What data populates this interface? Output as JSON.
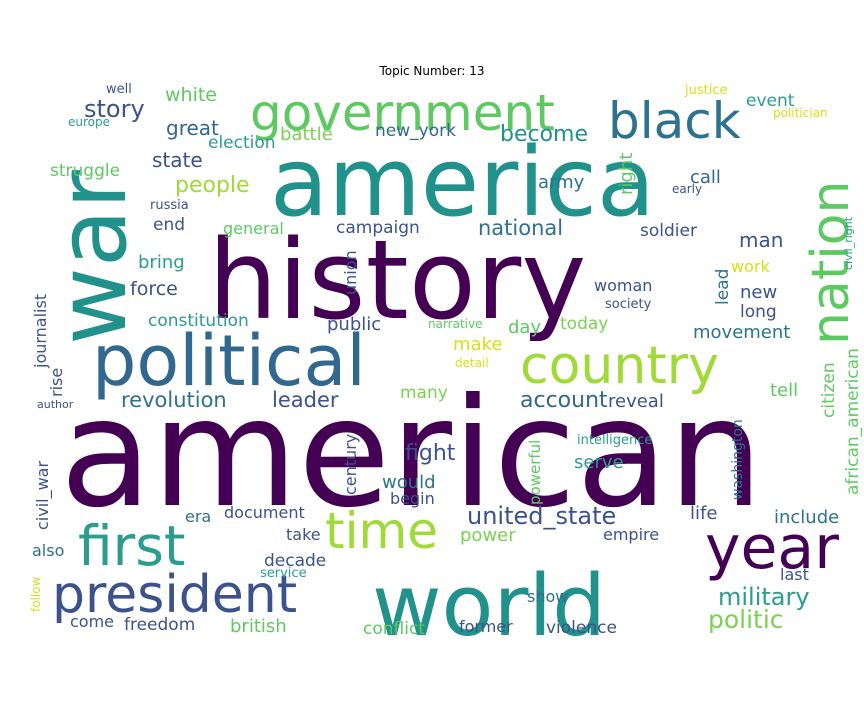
{
  "title": "Topic Number: 13",
  "palette": {
    "dark_purple": "#440154",
    "indigo": "#3b528b",
    "blue": "#31688e",
    "teal": "#21918c",
    "green_teal": "#2a9d8f",
    "green": "#5ec962",
    "lime": "#a0da39",
    "yellow": "#d5e21a"
  },
  "words": [
    {
      "text": "american",
      "color": "#440154"
    },
    {
      "text": "history",
      "color": "#440154"
    },
    {
      "text": "america",
      "color": "#21918c"
    },
    {
      "text": "world",
      "color": "#21918c"
    },
    {
      "text": "war",
      "color": "#21918c"
    },
    {
      "text": "political",
      "color": "#31688e"
    },
    {
      "text": "president",
      "color": "#3b528b"
    },
    {
      "text": "government",
      "color": "#5ec962"
    },
    {
      "text": "black",
      "color": "#2c728e"
    },
    {
      "text": "country",
      "color": "#a0da39"
    },
    {
      "text": "year",
      "color": "#440154"
    },
    {
      "text": "first",
      "color": "#2a9d8f"
    },
    {
      "text": "time",
      "color": "#a0da39"
    },
    {
      "text": "nation",
      "color": "#5ec962"
    },
    {
      "text": "united_state",
      "color": "#3b528b"
    },
    {
      "text": "military",
      "color": "#2a9d8f"
    },
    {
      "text": "story",
      "color": "#3b528b"
    },
    {
      "text": "become",
      "color": "#21918c"
    },
    {
      "text": "politic",
      "color": "#7ad151"
    },
    {
      "text": "people",
      "color": "#a0da39"
    },
    {
      "text": "account",
      "color": "#31688e"
    },
    {
      "text": "national",
      "color": "#2c728e"
    },
    {
      "text": "revolution",
      "color": "#2c728e"
    },
    {
      "text": "leader",
      "color": "#3b528b"
    },
    {
      "text": "fight",
      "color": "#3b528b"
    },
    {
      "text": "great",
      "color": "#31688e"
    },
    {
      "text": "white",
      "color": "#5ec962"
    },
    {
      "text": "state",
      "color": "#3b528b"
    },
    {
      "text": "struggle",
      "color": "#5ec962"
    },
    {
      "text": "battle",
      "color": "#7ad151"
    },
    {
      "text": "new_york",
      "color": "#31688e"
    },
    {
      "text": "election",
      "color": "#2a9d8f"
    },
    {
      "text": "army",
      "color": "#2c728e"
    },
    {
      "text": "right",
      "color": "#5ec962"
    },
    {
      "text": "call",
      "color": "#31688e"
    },
    {
      "text": "event",
      "color": "#2a9d8f"
    },
    {
      "text": "end",
      "color": "#3b528b"
    },
    {
      "text": "general",
      "color": "#5ec962"
    },
    {
      "text": "campaign",
      "color": "#3b528b"
    },
    {
      "text": "soldier",
      "color": "#3b528b"
    },
    {
      "text": "man",
      "color": "#3b528b"
    },
    {
      "text": "bring",
      "color": "#2a9d8f"
    },
    {
      "text": "force",
      "color": "#3b528b"
    },
    {
      "text": "union",
      "color": "#3b528b"
    },
    {
      "text": "woman",
      "color": "#3b528b"
    },
    {
      "text": "lead",
      "color": "#2c728e"
    },
    {
      "text": "work",
      "color": "#d5e21a"
    },
    {
      "text": "new",
      "color": "#3b528b"
    },
    {
      "text": "long",
      "color": "#3b528b"
    },
    {
      "text": "constitution",
      "color": "#2a9d8f"
    },
    {
      "text": "public",
      "color": "#3b528b"
    },
    {
      "text": "narrative",
      "color": "#5ec962"
    },
    {
      "text": "day",
      "color": "#5ec962"
    },
    {
      "text": "today",
      "color": "#7ad151"
    },
    {
      "text": "movement",
      "color": "#2c728e"
    },
    {
      "text": "make",
      "color": "#d5e21a"
    },
    {
      "text": "detail",
      "color": "#d5e21a"
    },
    {
      "text": "journalist",
      "color": "#3b528b"
    },
    {
      "text": "rise",
      "color": "#3b528b"
    },
    {
      "text": "many",
      "color": "#7ad151"
    },
    {
      "text": "reveal",
      "color": "#3b528b"
    },
    {
      "text": "tell",
      "color": "#5ec962"
    },
    {
      "text": "citizen",
      "color": "#5ec962"
    },
    {
      "text": "african_american",
      "color": "#5ec962"
    },
    {
      "text": "author",
      "color": "#3b528b"
    },
    {
      "text": "intelligence",
      "color": "#2a9d8f"
    },
    {
      "text": "serve",
      "color": "#2a9d8f"
    },
    {
      "text": "washington",
      "color": "#2c728e"
    },
    {
      "text": "would",
      "color": "#2c728e"
    },
    {
      "text": "begin",
      "color": "#3b528b"
    },
    {
      "text": "century",
      "color": "#3b528b"
    },
    {
      "text": "powerful",
      "color": "#5ec962"
    },
    {
      "text": "civil_war",
      "color": "#3b528b"
    },
    {
      "text": "era",
      "color": "#2c728e"
    },
    {
      "text": "document",
      "color": "#3b528b"
    },
    {
      "text": "life",
      "color": "#3b528b"
    },
    {
      "text": "include",
      "color": "#2c728e"
    },
    {
      "text": "take",
      "color": "#3b528b"
    },
    {
      "text": "power",
      "color": "#7ad151"
    },
    {
      "text": "empire",
      "color": "#3b528b"
    },
    {
      "text": "also",
      "color": "#2c728e"
    },
    {
      "text": "decade",
      "color": "#3b528b"
    },
    {
      "text": "last",
      "color": "#3b528b"
    },
    {
      "text": "service",
      "color": "#2a9d8f"
    },
    {
      "text": "follow",
      "color": "#d5e21a"
    },
    {
      "text": "show",
      "color": "#2c728e"
    },
    {
      "text": "come",
      "color": "#3b528b"
    },
    {
      "text": "freedom",
      "color": "#3b528b"
    },
    {
      "text": "british",
      "color": "#5ec962"
    },
    {
      "text": "conflict",
      "color": "#5ec962"
    },
    {
      "text": "former",
      "color": "#3b528b"
    },
    {
      "text": "violence",
      "color": "#3b528b"
    },
    {
      "text": "well",
      "color": "#3b528b"
    },
    {
      "text": "europe",
      "color": "#2a9d8f"
    },
    {
      "text": "justice",
      "color": "#d5e21a"
    },
    {
      "text": "politician",
      "color": "#d5e21a"
    },
    {
      "text": "russia",
      "color": "#3b528b"
    },
    {
      "text": "early",
      "color": "#3b528b"
    },
    {
      "text": "civil_right",
      "color": "#2a9d8f"
    },
    {
      "text": "society",
      "color": "#3b528b"
    }
  ]
}
